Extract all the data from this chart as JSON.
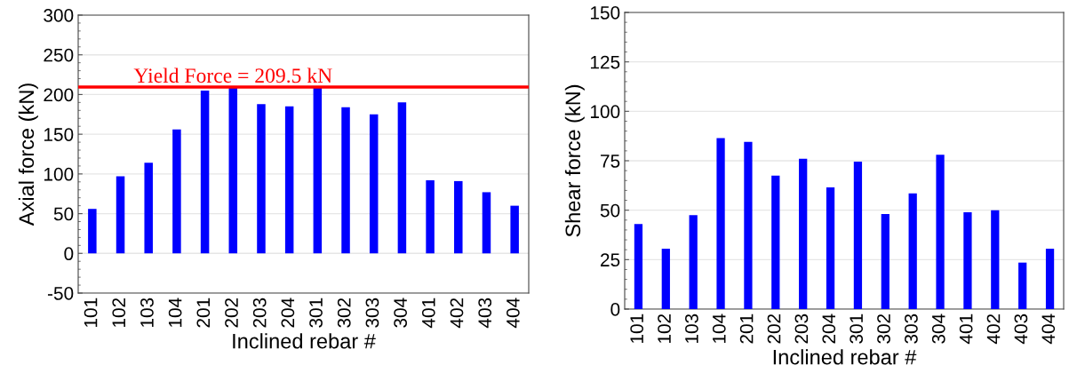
{
  "chart_data": [
    {
      "type": "bar",
      "xlabel": "Inclined rebar #",
      "ylabel": "Axial force (kN)",
      "categories": [
        "101",
        "102",
        "103",
        "104",
        "201",
        "202",
        "203",
        "204",
        "301",
        "302",
        "303",
        "304",
        "401",
        "402",
        "403",
        "404"
      ],
      "values": [
        56,
        97,
        114,
        156,
        205,
        209,
        188,
        185,
        209,
        184,
        175,
        190,
        92,
        91,
        77,
        60
      ],
      "color": "#0000ff",
      "ylim": [
        -50,
        300
      ],
      "yticks": [
        -50,
        0,
        50,
        100,
        150,
        200,
        250,
        300
      ],
      "grid": "y",
      "ref_lines": [
        {
          "axis": "y",
          "value": 209.5,
          "label": "Yield Force = 209.5 kN",
          "color": "#ff0000"
        }
      ]
    },
    {
      "type": "bar",
      "xlabel": "Inclined rebar #",
      "ylabel": "Shear force (kN)",
      "categories": [
        "101",
        "102",
        "103",
        "104",
        "201",
        "202",
        "203",
        "204",
        "301",
        "302",
        "303",
        "304",
        "401",
        "402",
        "403",
        "404"
      ],
      "values": [
        43,
        30.5,
        47.5,
        86.5,
        84.5,
        67.5,
        76,
        61.5,
        74.5,
        48,
        58.5,
        78,
        49,
        50,
        23.5,
        30.5
      ],
      "color": "#0000ff",
      "ylim": [
        0,
        150
      ],
      "yticks": [
        0,
        25,
        50,
        75,
        100,
        125,
        150
      ],
      "grid": "y"
    }
  ]
}
